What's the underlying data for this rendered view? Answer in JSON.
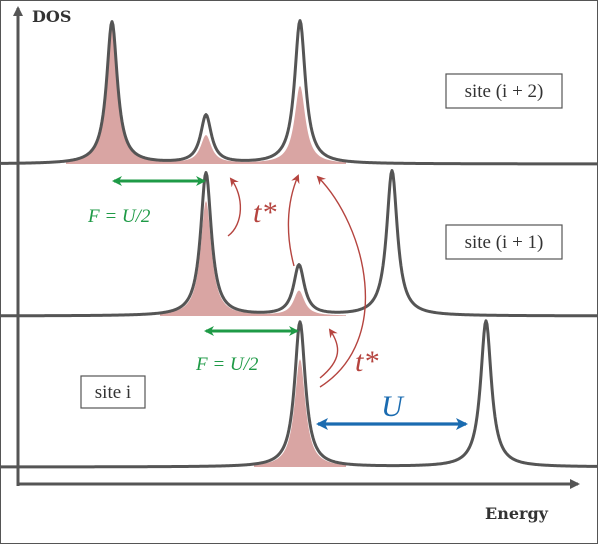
{
  "axes": {
    "y_label": "DOS",
    "x_label": "Energy"
  },
  "sites": [
    {
      "label": "site (i + 2)"
    },
    {
      "label": "site (i + 1)"
    },
    {
      "label": "site i"
    }
  ],
  "annotations": {
    "hopping_upper": "t*",
    "hopping_lower": "t*",
    "field_upper": "F = U/2",
    "field_lower": "F = U/2",
    "interaction": "U"
  },
  "colors": {
    "curve": "#555555",
    "fill": "#d9a5a3",
    "green": "#1e9a46",
    "red": "#b5443f",
    "blue": "#1a6bb0"
  }
}
